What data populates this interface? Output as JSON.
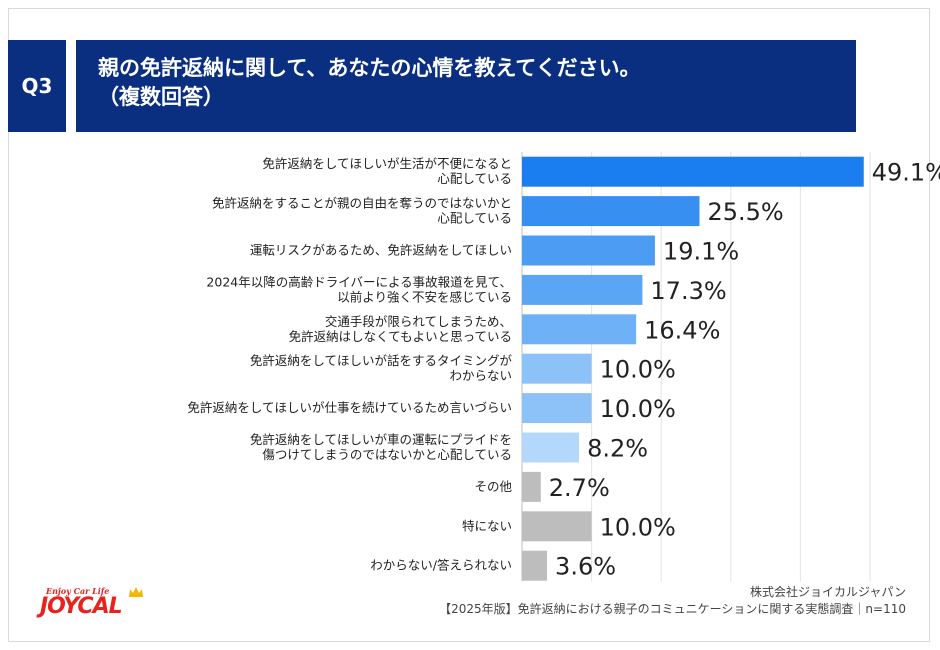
{
  "header": {
    "q_label": "Q3",
    "title_line1": "親の免許返納に関して、あなたの心情を教えてください。",
    "title_line2": "（複数回答）"
  },
  "footer": {
    "company": "株式会社ジョイカルジャパン",
    "survey": "【2025年版】免許返納における親子のコミュニケーションに関する実態調査｜n=110"
  },
  "logo": {
    "tagline": "Enjoy Car Life",
    "wordmark": "JOYCAL"
  },
  "colors": {
    "header_bg": "#0b2f80",
    "bar_shades": [
      "#1a7df0",
      "#3790f1",
      "#4c9cf3",
      "#5aa5f4",
      "#6fb1f6",
      "#8cc2f8",
      "#8cc2f8",
      "#b4d8fb",
      "#bdbdbd",
      "#bdbdbd",
      "#bdbdbd"
    ],
    "brand_red": "#e8231f"
  },
  "chart_data": {
    "type": "bar",
    "orientation": "horizontal",
    "categories": [
      [
        "免許返納をしてほしいが生活が不便になると",
        "心配している"
      ],
      [
        "免許返納をすることが親の自由を奪うのではないかと",
        "心配している"
      ],
      [
        "運転リスクがあるため、免許返納をしてほしい"
      ],
      [
        "2024年以降の高齢ドライバーによる事故報道を見て、",
        "以前より強く不安を感じている"
      ],
      [
        "交通手段が限られてしまうため、",
        "免許返納はしなくてもよいと思っている"
      ],
      [
        "免許返納をしてほしいが話をするタイミングが",
        "わからない"
      ],
      [
        "免許返納をしてほしいが仕事を続けているため言いづらい"
      ],
      [
        "免許返納をしてほしいが車の運転にプライドを",
        "傷つけてしまうのではないかと心配している"
      ],
      [
        "その他"
      ],
      [
        "特にない"
      ],
      [
        "わからない/答えられない"
      ]
    ],
    "values": [
      49.1,
      25.5,
      19.1,
      17.3,
      16.4,
      10.0,
      10.0,
      8.2,
      2.7,
      10.0,
      3.6
    ],
    "value_labels": [
      "49.1%",
      "25.5%",
      "19.1%",
      "17.3%",
      "16.4%",
      "10.0%",
      "10.0%",
      "8.2%",
      "2.7%",
      "10.0%",
      "3.6%"
    ],
    "xlim": [
      0,
      50
    ],
    "grid": true,
    "legend": "none"
  }
}
